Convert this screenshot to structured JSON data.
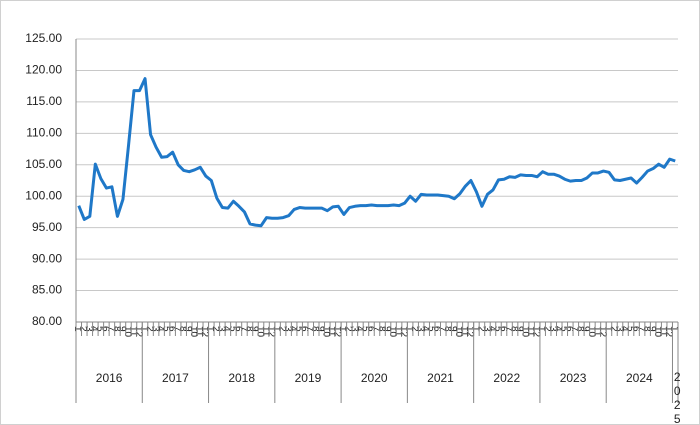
{
  "chart_data": {
    "type": "line",
    "categories": [
      "1",
      "2",
      "3",
      "4",
      "5",
      "6",
      "7",
      "8",
      "9",
      "10",
      "11",
      "12",
      "1",
      "2",
      "3",
      "4",
      "5",
      "6",
      "7",
      "8",
      "9",
      "10",
      "11",
      "12",
      "1",
      "2",
      "3",
      "4",
      "5",
      "6",
      "7",
      "8",
      "9",
      "10",
      "11",
      "12",
      "1",
      "2",
      "3",
      "4",
      "5",
      "6",
      "7",
      "8",
      "9",
      "10",
      "11",
      "12",
      "1",
      "2",
      "3",
      "4",
      "5",
      "6",
      "7",
      "8",
      "9",
      "10",
      "11",
      "12",
      "1",
      "2",
      "3",
      "4",
      "5",
      "6",
      "7",
      "8",
      "9",
      "10",
      "11",
      "12",
      "1",
      "2",
      "3",
      "4",
      "5",
      "6",
      "7",
      "8",
      "9",
      "10",
      "11",
      "12",
      "1",
      "2",
      "3",
      "4",
      "5",
      "6",
      "7",
      "8",
      "9",
      "10",
      "11",
      "12",
      "1",
      "2",
      "3",
      "4",
      "5",
      "6",
      "7",
      "8",
      "9",
      "10",
      "11",
      "12",
      "1"
    ],
    "year_groups": [
      {
        "label": "2016",
        "span": 12
      },
      {
        "label": "2017",
        "span": 12
      },
      {
        "label": "2018",
        "span": 12
      },
      {
        "label": "2019",
        "span": 12
      },
      {
        "label": "2020",
        "span": 12
      },
      {
        "label": "2021",
        "span": 12
      },
      {
        "label": "2022",
        "span": 12
      },
      {
        "label": "2023",
        "span": 12
      },
      {
        "label": "2024",
        "span": 12
      },
      {
        "label": "2025",
        "span": 1
      }
    ],
    "values": [
      98.5,
      96.3,
      96.8,
      105.1,
      102.8,
      101.3,
      101.5,
      96.8,
      99.5,
      108.0,
      116.8,
      116.8,
      118.7,
      109.8,
      107.8,
      106.2,
      106.3,
      107.0,
      105.0,
      104.1,
      103.9,
      104.2,
      104.6,
      103.2,
      102.5,
      99.7,
      98.2,
      98.1,
      99.2,
      98.4,
      97.5,
      95.6,
      95.4,
      95.3,
      96.6,
      96.5,
      96.5,
      96.6,
      96.9,
      97.9,
      98.2,
      98.1,
      98.1,
      98.1,
      98.1,
      97.7,
      98.3,
      98.4,
      97.1,
      98.2,
      98.4,
      98.5,
      98.5,
      98.6,
      98.5,
      98.5,
      98.5,
      98.6,
      98.5,
      98.9,
      100.0,
      99.2,
      100.3,
      100.2,
      100.2,
      100.2,
      100.1,
      100.0,
      99.6,
      100.4,
      101.6,
      102.5,
      100.7,
      98.4,
      100.3,
      101.0,
      102.6,
      102.7,
      103.1,
      103.0,
      103.4,
      103.3,
      103.3,
      103.1,
      103.9,
      103.5,
      103.5,
      103.2,
      102.7,
      102.4,
      102.5,
      102.5,
      102.9,
      103.7,
      103.7,
      104.0,
      103.8,
      102.6,
      102.5,
      102.7,
      102.9,
      102.1,
      103.0,
      104.0,
      104.4,
      105.1,
      104.6,
      105.9,
      105.6
    ],
    "color": "#1f78c8",
    "ylim": [
      80,
      125
    ],
    "yticks": [
      {
        "value": 80,
        "label": "80.00"
      },
      {
        "value": 85,
        "label": "85.00"
      },
      {
        "value": 90,
        "label": "90.00"
      },
      {
        "value": 95,
        "label": "95.00"
      },
      {
        "value": 100,
        "label": "100.00"
      },
      {
        "value": 105,
        "label": "105.00"
      },
      {
        "value": 110,
        "label": "110.00"
      },
      {
        "value": 115,
        "label": "115.00"
      },
      {
        "value": 120,
        "label": "120.00"
      },
      {
        "value": 125,
        "label": "125.00"
      }
    ],
    "grid": true
  }
}
